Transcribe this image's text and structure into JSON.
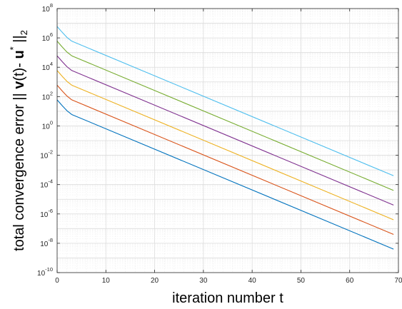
{
  "chart_data": {
    "type": "line",
    "xlabel": "iteration number t",
    "ylabel": {
      "prefix": "total convergence error || ",
      "v": "v",
      "mid": "(t)- ",
      "u": "u",
      "star": "*",
      "bars": " ||",
      "sub": "2"
    },
    "xlim": [
      0,
      70
    ],
    "ylim": [
      1e-10,
      100000000.0
    ],
    "yscale": "log",
    "grid": true,
    "x_ticks": [
      0,
      10,
      20,
      30,
      40,
      50,
      60,
      70
    ],
    "x_tick_labels": [
      "0",
      "10",
      "20",
      "30",
      "40",
      "50",
      "60",
      "70"
    ],
    "y_ticks": [
      1e-10,
      1e-08,
      1e-06,
      0.0001,
      0.01,
      1.0,
      100.0,
      10000.0,
      1000000.0,
      100000000.0
    ],
    "y_tick_labels": [
      {
        "base": "10",
        "exp": "-10"
      },
      {
        "base": "10",
        "exp": "-8"
      },
      {
        "base": "10",
        "exp": "-6"
      },
      {
        "base": "10",
        "exp": "-4"
      },
      {
        "base": "10",
        "exp": "-2"
      },
      {
        "base": "10",
        "exp": "0"
      },
      {
        "base": "10",
        "exp": "2"
      },
      {
        "base": "10",
        "exp": "4"
      },
      {
        "base": "10",
        "exp": "6"
      },
      {
        "base": "10",
        "exp": "8"
      }
    ],
    "series": [
      {
        "color": "#0072BD",
        "x": [
          0,
          1,
          2,
          3,
          69
        ],
        "y": [
          60,
          25,
          11,
          6,
          4e-09
        ]
      },
      {
        "color": "#D95319",
        "x": [
          0,
          1,
          2,
          3,
          69
        ],
        "y": [
          600,
          250,
          110,
          60,
          4e-08
        ]
      },
      {
        "color": "#EDB120",
        "x": [
          0,
          1,
          2,
          3,
          69
        ],
        "y": [
          6000,
          2500,
          1100,
          600,
          4e-07
        ]
      },
      {
        "color": "#7E2F8E",
        "x": [
          0,
          1,
          2,
          3,
          69
        ],
        "y": [
          60000,
          25000,
          11000,
          6000,
          4e-06
        ]
      },
      {
        "color": "#77AC30",
        "x": [
          0,
          1,
          2,
          3,
          69
        ],
        "y": [
          600000,
          250000,
          110000,
          60000,
          4e-05
        ]
      },
      {
        "color": "#4DBEEE",
        "x": [
          0,
          1,
          2,
          3,
          69
        ],
        "y": [
          6000000,
          2500000,
          1100000,
          600000,
          0.0004
        ]
      }
    ]
  }
}
